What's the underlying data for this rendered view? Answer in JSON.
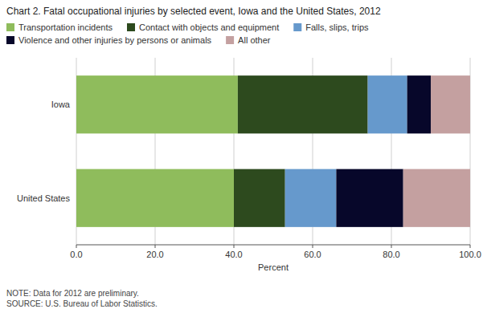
{
  "chart_data": {
    "type": "bar",
    "orientation": "horizontal",
    "stacked": true,
    "title": "Chart 2.  Fatal occupational injuries by selected event, Iowa and the United States, 2012",
    "categories": [
      "Iowa",
      "United States"
    ],
    "series": [
      {
        "name": "Transportation incidents",
        "color": "#8fbc5c",
        "values": [
          41.0,
          40.0
        ]
      },
      {
        "name": "Contact with objects and equipment",
        "color": "#2d4a1e",
        "values": [
          33.0,
          13.0
        ]
      },
      {
        "name": "Falls, slips, trips",
        "color": "#6699cc",
        "values": [
          10.0,
          13.0
        ]
      },
      {
        "name": "Violence and other injuries by persons or animals",
        "color": "#07072a",
        "values": [
          6.0,
          17.0
        ]
      },
      {
        "name": "All other",
        "color": "#c4a0a0",
        "values": [
          10.0,
          17.0
        ]
      }
    ],
    "xlabel": "Percent",
    "xlim": [
      0,
      100
    ],
    "xticks": [
      {
        "value": 0,
        "label": "0.0"
      },
      {
        "value": 20,
        "label": "20.0"
      },
      {
        "value": 40,
        "label": "40.0"
      },
      {
        "value": 60,
        "label": "60.0"
      },
      {
        "value": 80,
        "label": "80.0"
      },
      {
        "value": 100,
        "label": "100.0"
      }
    ],
    "grid": true,
    "legend": "top",
    "note": "NOTE: Data for 2012 are preliminary.\nSOURCE: U.S. Bureau of Labor Statistics."
  }
}
